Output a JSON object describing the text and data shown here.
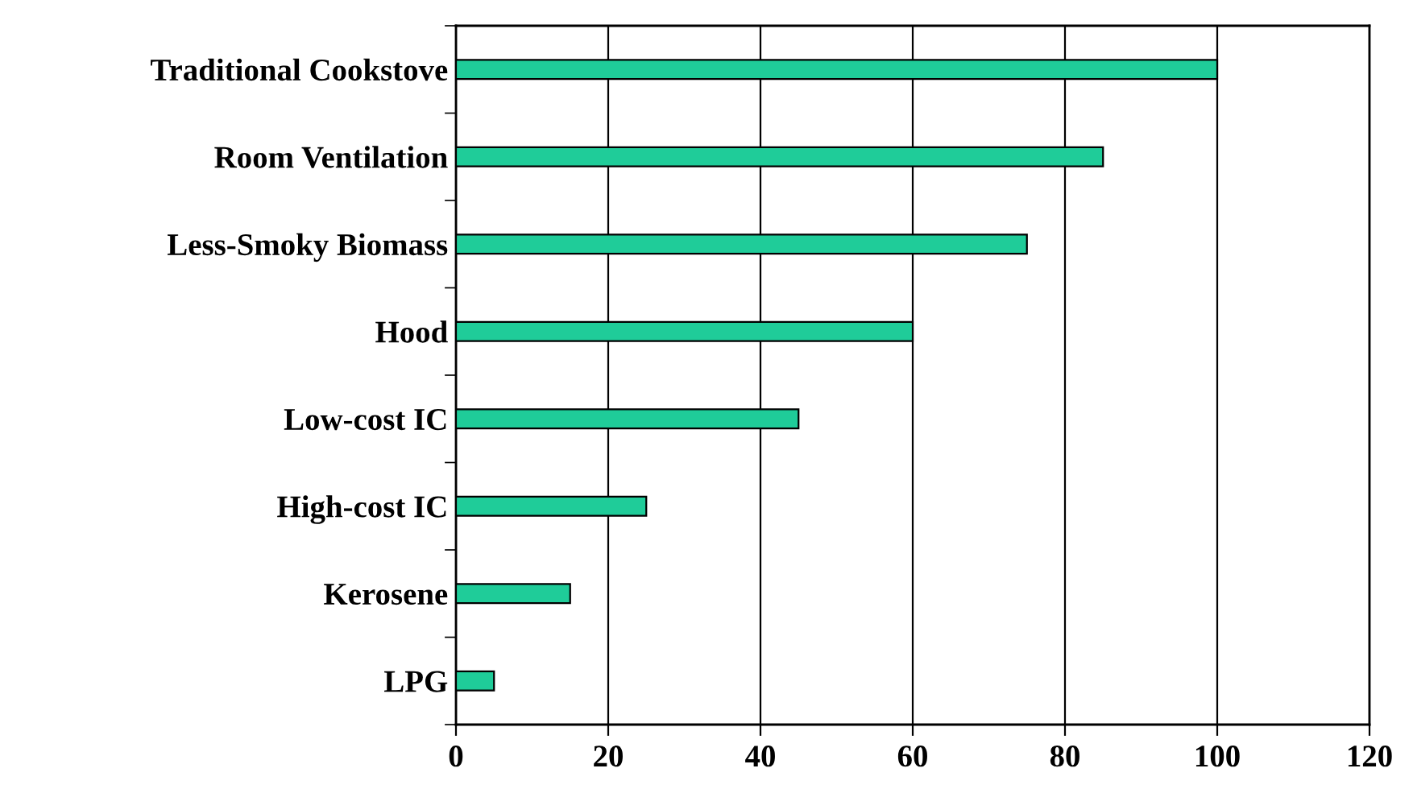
{
  "chart_data": {
    "type": "bar",
    "orientation": "horizontal",
    "categories": [
      "Traditional Cookstove",
      "Room Ventilation",
      "Less-Smoky Biomass",
      "Hood",
      "Low-cost IC",
      "High-cost IC",
      "Kerosene",
      "LPG"
    ],
    "values": [
      100,
      85,
      75,
      60,
      45,
      25,
      15,
      5
    ],
    "color": "#1fcc99",
    "xlim": [
      0,
      120
    ],
    "xticks": [
      0,
      20,
      40,
      60,
      80,
      100,
      120
    ],
    "grid": "x"
  }
}
